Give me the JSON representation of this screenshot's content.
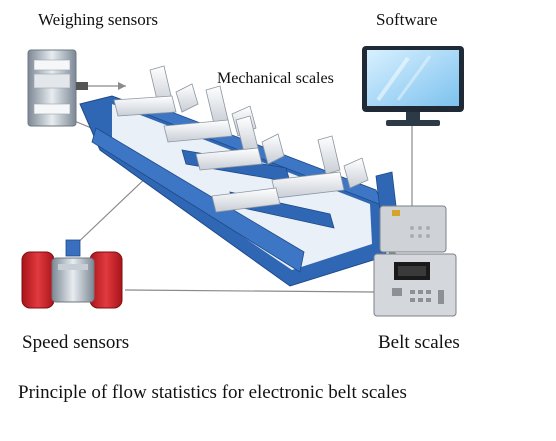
{
  "labels": {
    "weighing_sensors": "Weighing sensors",
    "software": "Software",
    "mechanical_scales": "Mechanical scales",
    "speed_sensors": "Speed sensors",
    "belt_scales": "Belt scales"
  },
  "caption": "Principle of flow statistics for electronic belt scales",
  "colors": {
    "frame_blue": "#2f67b5",
    "roller_white": "#e9edf1",
    "speed_sensor_red": "#d6252b",
    "monitor_blue": "#9fd3f5",
    "device_gray": "#cfd2d6",
    "connector_line": "#8a8a8a"
  }
}
